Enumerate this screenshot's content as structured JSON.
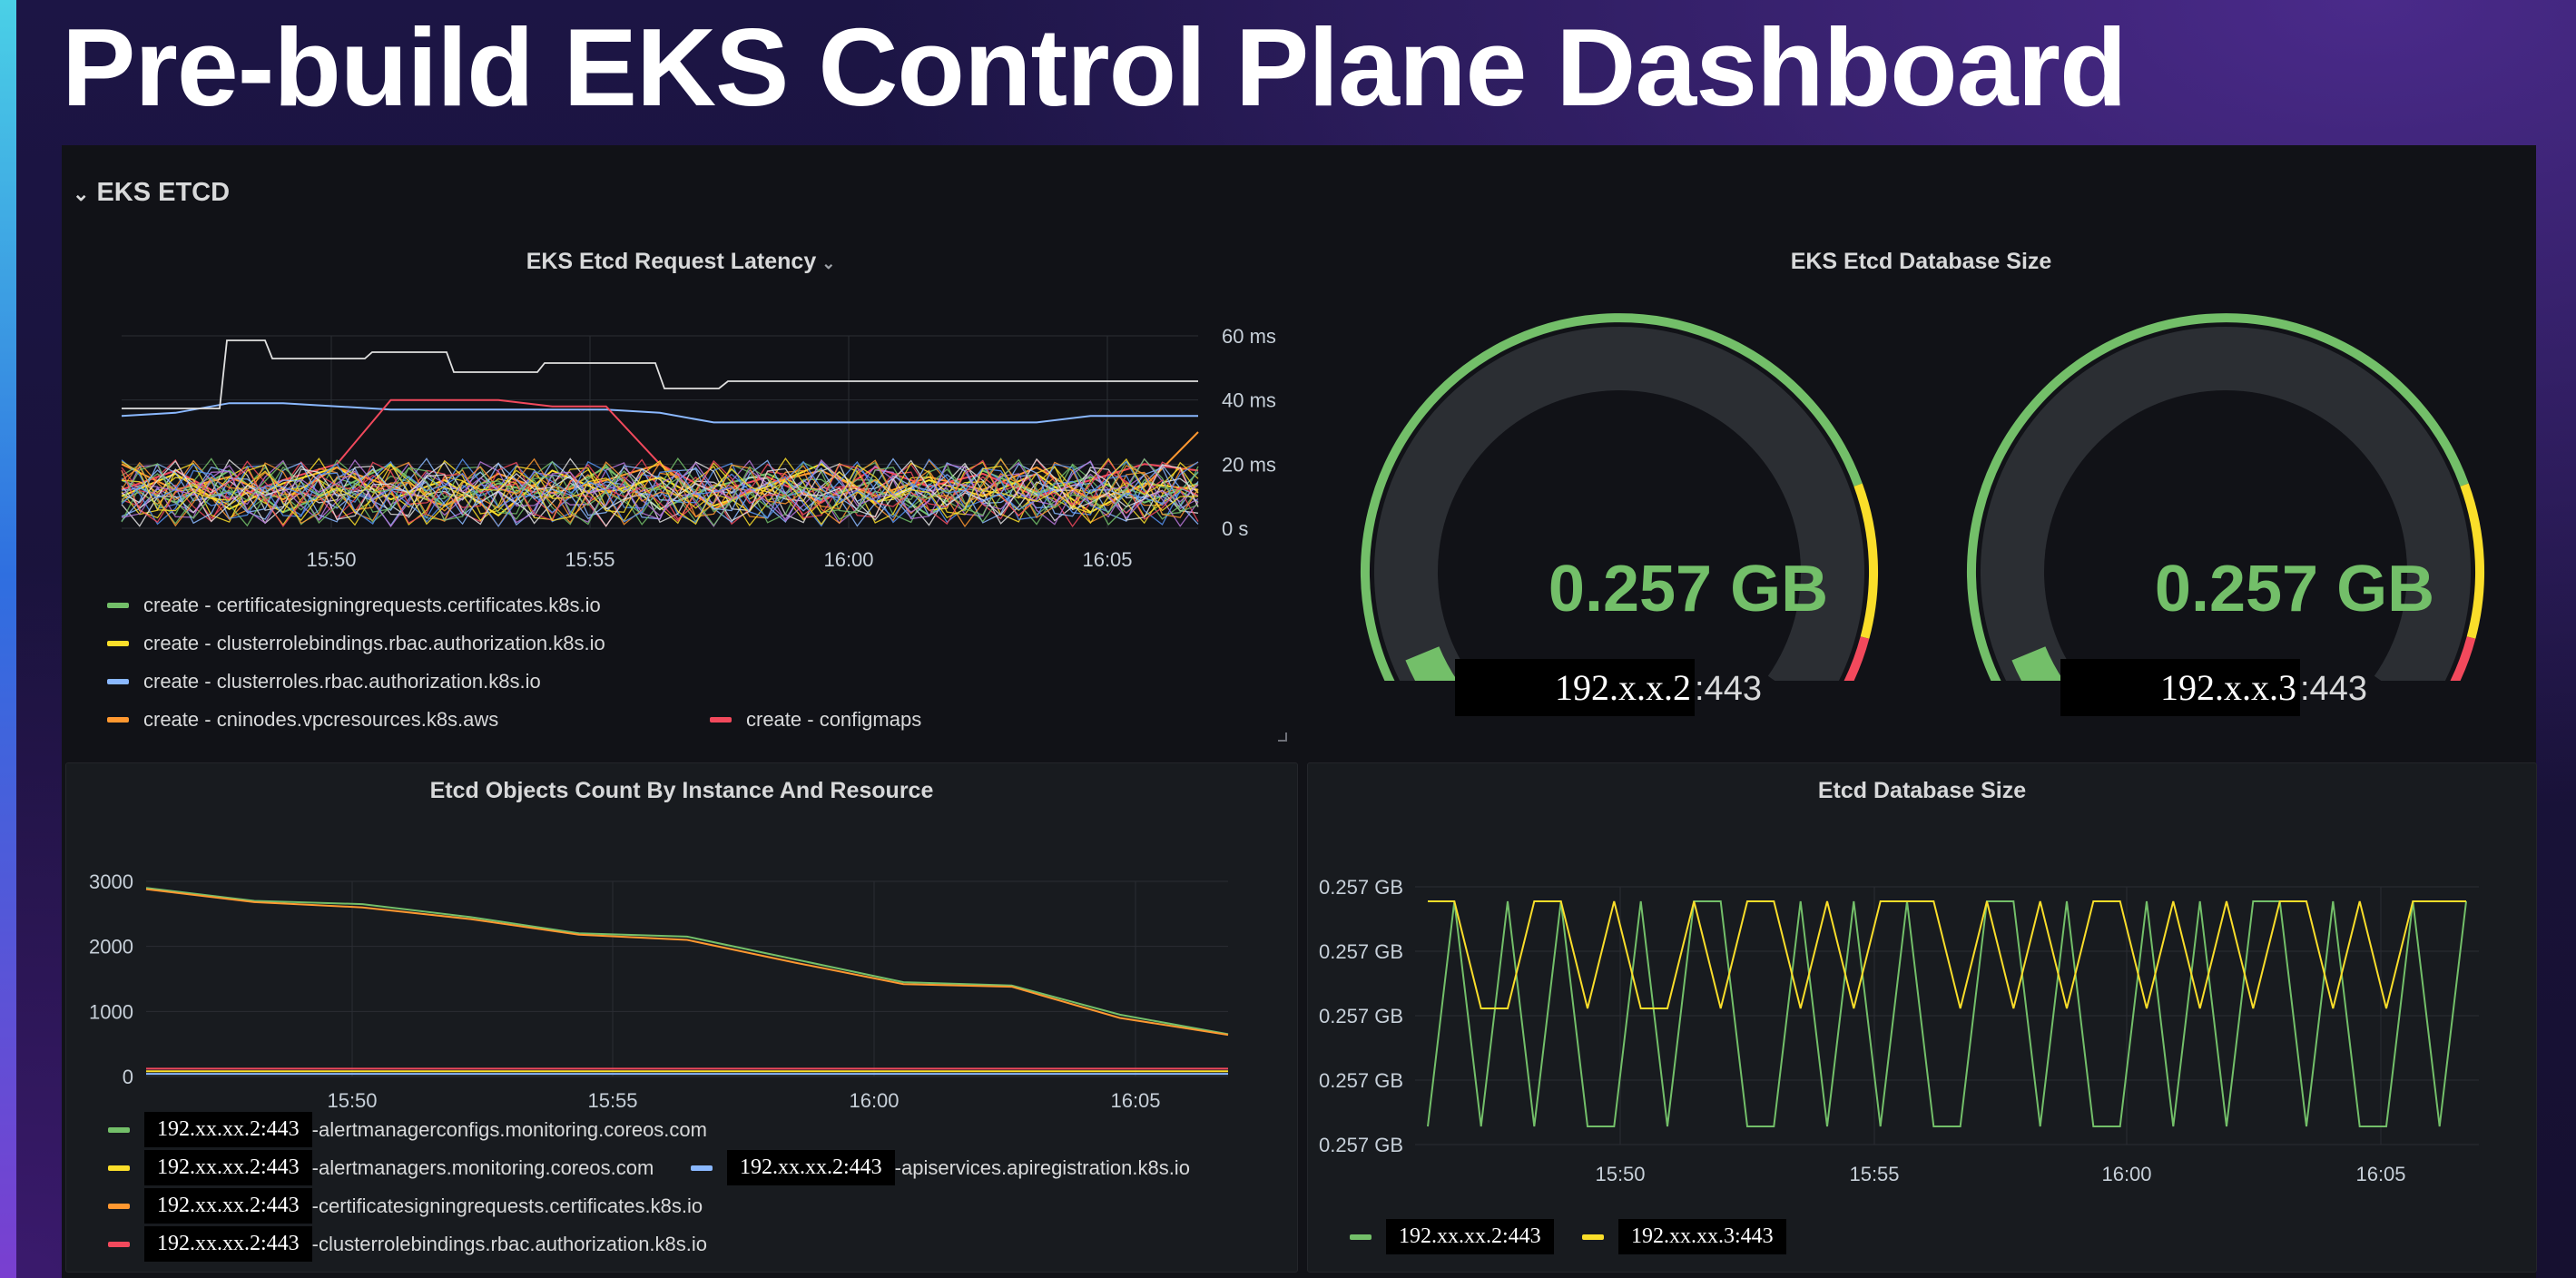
{
  "page": {
    "title": "Pre-build EKS Control Plane Dashboard"
  },
  "row": {
    "title": "EKS ETCD",
    "chevron_icon": "chevron-down-icon"
  },
  "colors": {
    "green": "#73bf69",
    "yellow": "#fade2a",
    "blue": "#8ab8ff",
    "orange": "#ff9830",
    "red": "#f2495c",
    "white": "#e0e0e0"
  },
  "panels": {
    "latency": {
      "title": "EKS Etcd Request Latency",
      "legend": [
        {
          "label": "create - certificatesigningrequests.certificates.k8s.io",
          "color": "#73bf69"
        },
        {
          "label": "create - clusterrolebindings.rbac.authorization.k8s.io",
          "color": "#fade2a"
        },
        {
          "label": "create - clusterroles.rbac.authorization.k8s.io",
          "color": "#8ab8ff"
        },
        {
          "label": "create - cninodes.vpcresources.k8s.aws",
          "color": "#ff9830"
        },
        {
          "label": "create - configmaps",
          "color": "#f2495c"
        }
      ]
    },
    "db_gauge": {
      "title": "EKS Etcd Database Size",
      "gauges": [
        {
          "value": "0.257 GB",
          "instance_redacted": "192.x.x.2",
          "port_suffix": ":443",
          "fraction": 0.05
        },
        {
          "value": "0.257 GB",
          "instance_redacted": "192.x.x.3",
          "port_suffix": ":443",
          "fraction": 0.05
        }
      ]
    },
    "objects": {
      "title": "Etcd Objects Count By Instance And Resource",
      "legend": [
        {
          "instance": "192.xx.xx.2:443",
          "label": "-alertmanagerconfigs.monitoring.coreos.com",
          "color": "#73bf69"
        },
        {
          "instance": "192.xx.xx.2:443",
          "label": "-alertmanagers.monitoring.coreos.com",
          "color": "#fade2a"
        },
        {
          "instance": "192.xx.xx.2:443",
          "label": "-apiservices.apiregistration.k8s.io",
          "color": "#8ab8ff"
        },
        {
          "instance": "192.xx.xx.2:443",
          "label": "-certificatesigningrequests.certificates.k8s.io",
          "color": "#ff9830"
        },
        {
          "instance": "192.xx.xx.2:443",
          "label": "-clusterrolebindings.rbac.authorization.k8s.io",
          "color": "#f2495c"
        }
      ]
    },
    "dbsize": {
      "title": "Etcd Database Size",
      "legend": [
        {
          "instance": "192.xx.xx.2:443",
          "color": "#73bf69"
        },
        {
          "instance": "192.xx.xx.3:443",
          "color": "#fade2a"
        }
      ]
    }
  },
  "chart_data": [
    {
      "type": "line",
      "title": "EKS Etcd Request Latency",
      "x_ticks": [
        "15:50",
        "15:55",
        "16:00",
        "16:05"
      ],
      "y_ticks": [
        "60 ms",
        "40 ms",
        "20 ms",
        "0 s"
      ],
      "ylim": [
        0,
        60
      ],
      "y_axis_side": "right",
      "grid": true,
      "series": [
        {
          "name": "create - certificatesigningrequests.certificates.k8s.io",
          "color": "#73bf69",
          "x": [
            0,
            1,
            2,
            3,
            4,
            5,
            6,
            7,
            8,
            9,
            10,
            11,
            12,
            13,
            14,
            15,
            16,
            17,
            18,
            19,
            20
          ],
          "y": [
            15,
            8,
            18,
            5,
            12,
            20,
            7,
            14,
            10,
            19,
            6,
            13,
            17,
            9,
            15,
            4,
            18,
            11,
            16,
            8,
            14
          ]
        },
        {
          "name": "create - clusterrolebindings.rbac.authorization.k8s.io",
          "color": "#fade2a",
          "x": [
            0,
            1,
            2,
            3,
            4,
            5,
            6,
            7,
            8,
            9,
            10,
            11,
            12,
            13,
            14,
            15,
            16,
            17,
            18,
            19,
            20
          ],
          "y": [
            10,
            17,
            6,
            14,
            19,
            9,
            15,
            4,
            18,
            11,
            16,
            7,
            13,
            20,
            8,
            15,
            10,
            17,
            5,
            14,
            12
          ]
        },
        {
          "name": "create - clusterroles.rbac.authorization.k8s.io",
          "color": "#8ab8ff",
          "x": [
            0,
            1,
            2,
            3,
            4,
            5,
            6,
            7,
            8,
            9,
            10,
            11,
            12,
            13,
            14,
            15,
            16,
            17,
            18,
            19,
            20
          ],
          "y": [
            35,
            36,
            39,
            39,
            38,
            37,
            37,
            37,
            37,
            37,
            36,
            33,
            33,
            33,
            33,
            33,
            33,
            33,
            35,
            35,
            35
          ]
        },
        {
          "name": "create - cninodes.vpcresources.k8s.aws",
          "color": "#ff9830",
          "x": [
            0,
            1,
            2,
            3,
            4,
            5,
            6,
            7,
            8,
            9,
            10,
            11,
            12,
            13,
            14,
            15,
            16,
            17,
            18,
            19,
            20
          ],
          "y": [
            20,
            12,
            16,
            9,
            19,
            13,
            7,
            17,
            11,
            15,
            20,
            6,
            14,
            18,
            10,
            16,
            12,
            19,
            9,
            13,
            30
          ]
        },
        {
          "name": "create - configmaps",
          "color": "#f2495c",
          "x": [
            0,
            1,
            2,
            3,
            4,
            5,
            6,
            7,
            8,
            9,
            10,
            11,
            12,
            13,
            14,
            15,
            16,
            17,
            18,
            19,
            20
          ],
          "y": [
            12,
            18,
            9,
            15,
            20,
            40,
            40,
            40,
            38,
            38,
            20,
            11,
            16,
            8,
            19,
            13,
            17,
            10,
            15,
            20,
            18
          ]
        }
      ]
    },
    {
      "type": "gauge",
      "title": "EKS Etcd Database Size",
      "values": [
        0.257,
        0.257
      ],
      "unit": "GB",
      "thresholds": [
        {
          "from": 0.0,
          "to": 0.78,
          "color": "#73bf69"
        },
        {
          "from": 0.78,
          "to": 0.92,
          "color": "#fade2a"
        },
        {
          "from": 0.92,
          "to": 1.0,
          "color": "#f2495c"
        }
      ]
    },
    {
      "type": "line",
      "title": "Etcd Objects Count By Instance And Resource",
      "x_ticks": [
        "15:50",
        "15:55",
        "16:00",
        "16:05"
      ],
      "y_ticks": [
        "3000",
        "2000",
        "1000",
        "0"
      ],
      "ylim": [
        0,
        3000
      ],
      "grid": true,
      "series": [
        {
          "color": "#73bf69",
          "x": [
            0,
            2,
            4,
            6,
            8,
            10,
            12,
            14,
            16,
            18,
            20
          ],
          "y": [
            2900,
            2700,
            2650,
            2450,
            2200,
            2150,
            1800,
            1450,
            1400,
            950,
            650
          ]
        },
        {
          "color": "#fade2a",
          "x": [
            0,
            20
          ],
          "y": [
            80,
            80
          ]
        },
        {
          "color": "#8ab8ff",
          "x": [
            0,
            20
          ],
          "y": [
            40,
            40
          ]
        },
        {
          "color": "#ff9830",
          "x": [
            0,
            2,
            4,
            6,
            8,
            10,
            12,
            14,
            16,
            18,
            20
          ],
          "y": [
            2880,
            2680,
            2600,
            2420,
            2180,
            2100,
            1750,
            1420,
            1380,
            900,
            640
          ]
        },
        {
          "color": "#f2495c",
          "x": [
            0,
            20
          ],
          "y": [
            120,
            120
          ]
        }
      ]
    },
    {
      "type": "line",
      "title": "Etcd Database Size",
      "x_ticks": [
        "15:50",
        "15:55",
        "16:00",
        "16:05"
      ],
      "y_ticks": [
        "0.257 GB",
        "0.257 GB",
        "0.257 GB",
        "0.257 GB",
        "0.257 GB"
      ],
      "grid": true,
      "series": [
        {
          "name": "192.xx.xx.2:443",
          "color": "#73bf69",
          "x": [
            0,
            1,
            2,
            3,
            4,
            5,
            6,
            7,
            8,
            9,
            10,
            11,
            12,
            13,
            14,
            15,
            16,
            17,
            18,
            19,
            20,
            21,
            22,
            23,
            24,
            25,
            26,
            27,
            28,
            29,
            30,
            31,
            32,
            33,
            34,
            35,
            36,
            37,
            38,
            39
          ],
          "y": [
            0,
            1,
            0,
            1,
            0,
            1,
            0,
            0,
            1,
            0,
            1,
            1,
            0,
            0,
            1,
            0,
            1,
            0,
            1,
            0,
            0,
            1,
            1,
            0,
            1,
            0,
            0,
            1,
            0,
            1,
            0,
            1,
            1,
            0,
            1,
            0,
            0,
            1,
            0,
            1
          ]
        },
        {
          "name": "192.xx.xx.3:443",
          "color": "#fade2a",
          "x": [
            0,
            1,
            2,
            3,
            4,
            5,
            6,
            7,
            8,
            9,
            10,
            11,
            12,
            13,
            14,
            15,
            16,
            17,
            18,
            19,
            20,
            21,
            22,
            23,
            24,
            25,
            26,
            27,
            28,
            29,
            30,
            31,
            32,
            33,
            34,
            35,
            36,
            37,
            38,
            39
          ],
          "y": [
            1,
            1,
            0,
            0,
            1,
            1,
            0,
            1,
            0,
            0,
            1,
            0,
            1,
            1,
            0,
            1,
            0,
            1,
            1,
            1,
            0,
            1,
            0,
            1,
            0,
            1,
            1,
            0,
            1,
            0,
            1,
            0,
            1,
            1,
            0,
            1,
            0,
            1,
            1,
            1
          ]
        }
      ]
    }
  ]
}
